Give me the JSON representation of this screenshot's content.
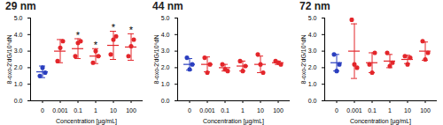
{
  "chart_data": [
    {
      "type": "scatter",
      "title": "29 nm",
      "x_label": "Concentration [µg/mL]",
      "y_label": "8-oxo-2'dG/10⁶dN",
      "categories": [
        "0",
        "0.001",
        "0.1",
        "1",
        "10",
        "100"
      ],
      "colors": [
        "#2b3fbf",
        "#e3262b",
        "#e3262b",
        "#e3262b",
        "#e3262b",
        "#e3262b"
      ],
      "points": [
        [
          1.5,
          2.0,
          1.7
        ],
        [
          2.4,
          3.2,
          3.6
        ],
        [
          2.7,
          3.5,
          3.6
        ],
        [
          2.3,
          3.0,
          2.7
        ],
        [
          2.8,
          3.7,
          3.9
        ],
        [
          2.7,
          3.3,
          3.7
        ]
      ],
      "means": [
        1.75,
        3.0,
        3.15,
        2.7,
        3.35,
        3.25
      ],
      "sd": [
        0.35,
        0.7,
        0.6,
        0.45,
        0.85,
        0.8
      ],
      "annotations": [
        {
          "category": "0.1",
          "text": "*"
        },
        {
          "category": "1",
          "text": "*"
        },
        {
          "category": "10",
          "text": "*"
        },
        {
          "category": "100",
          "text": "*"
        }
      ],
      "ylim": [
        0,
        5
      ],
      "yticks": [
        0,
        1,
        2,
        3,
        4,
        5
      ],
      "grid": false
    },
    {
      "type": "scatter",
      "title": "44 nm",
      "x_label": "Concentration [µg/mL]",
      "y_label": "8-oxo-2'dG/10⁶dN",
      "categories": [
        "0",
        "0.001",
        "0.1",
        "1",
        "10",
        "100"
      ],
      "colors": [
        "#2b3fbf",
        "#e3262b",
        "#e3262b",
        "#e3262b",
        "#e3262b",
        "#e3262b"
      ],
      "points": [
        [
          2.6,
          1.9,
          2.2
        ],
        [
          2.6,
          1.7,
          2.2
        ],
        [
          2.2,
          1.9,
          1.8
        ],
        [
          2.4,
          1.8,
          2.1
        ],
        [
          2.8,
          2.2,
          1.7
        ],
        [
          2.4,
          2.3,
          2.2
        ]
      ],
      "means": [
        2.2,
        2.2,
        2.0,
        2.1,
        2.2,
        2.3
      ],
      "sd": [
        0.35,
        0.45,
        0.2,
        0.3,
        0.5,
        0.1
      ],
      "annotations": [],
      "ylim": [
        0,
        5
      ],
      "yticks": [
        0,
        1,
        2,
        3,
        4,
        5
      ],
      "grid": false
    },
    {
      "type": "scatter",
      "title": "72 nm",
      "x_label": "Concentration [µg/mL]",
      "y_label": "8-oxo-2'dG/10⁶dN",
      "categories": [
        "0",
        "0.001",
        "0.1",
        "1",
        "10",
        "100"
      ],
      "colors": [
        "#2b3fbf",
        "#e3262b",
        "#e3262b",
        "#e3262b",
        "#e3262b",
        "#e3262b"
      ],
      "points": [
        [
          2.8,
          1.8,
          2.2
        ],
        [
          4.9,
          2.2,
          2.0
        ],
        [
          2.2,
          1.7,
          2.9
        ],
        [
          2.9,
          2.1,
          2.3
        ],
        [
          2.7,
          2.2,
          2.6
        ],
        [
          3.6,
          2.5,
          2.9
        ]
      ],
      "means": [
        2.3,
        3.0,
        2.3,
        2.4,
        2.5,
        3.0
      ],
      "sd": [
        0.5,
        1.65,
        0.6,
        0.4,
        0.25,
        0.55
      ],
      "annotations": [],
      "ylim": [
        0,
        5
      ],
      "yticks": [
        0,
        1,
        2,
        3,
        4,
        5
      ],
      "grid": false
    }
  ]
}
